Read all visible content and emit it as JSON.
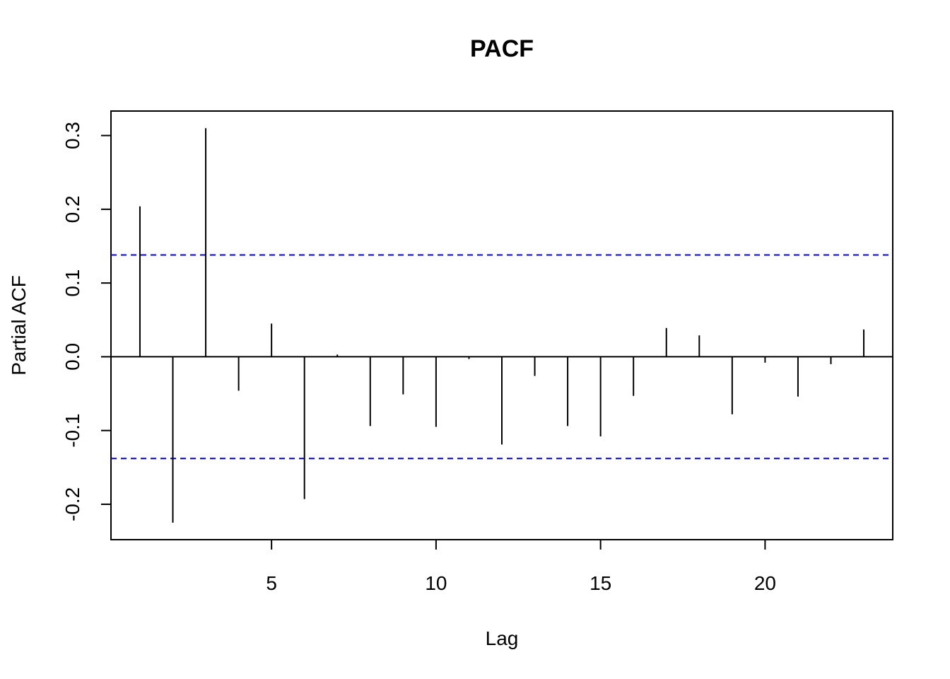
{
  "chart_data": {
    "type": "bar",
    "title": "PACF",
    "xlabel": "Lag",
    "ylabel": "Partial ACF",
    "x": [
      1,
      2,
      3,
      4,
      5,
      6,
      7,
      8,
      9,
      10,
      11,
      12,
      13,
      14,
      15,
      16,
      17,
      18,
      19,
      20,
      21,
      22,
      23
    ],
    "values": [
      0.204,
      -0.225,
      0.31,
      -0.046,
      0.045,
      -0.193,
      0.003,
      -0.094,
      -0.051,
      -0.095,
      -0.003,
      -0.119,
      -0.026,
      -0.094,
      -0.108,
      -0.053,
      0.039,
      0.029,
      -0.078,
      -0.008,
      -0.054,
      -0.01,
      0.037
    ],
    "confidence_bound": 0.138,
    "xlim": [
      0.12,
      23.88
    ],
    "ylim": [
      -0.248,
      0.3332
    ],
    "xticks": [
      5,
      10,
      15,
      20
    ],
    "xtick_labels": [
      "5",
      "10",
      "15",
      "20"
    ],
    "yticks": [
      -0.2,
      -0.1,
      0.0,
      0.1,
      0.2,
      0.3
    ],
    "ytick_labels": [
      "-0.2",
      "-0.1",
      "0.0",
      "0.1",
      "0.2",
      "0.3"
    ],
    "grid": false,
    "colors": {
      "bars": "#000000",
      "zero_line": "#000000",
      "confidence": "#0000cc",
      "frame": "#000000"
    }
  }
}
